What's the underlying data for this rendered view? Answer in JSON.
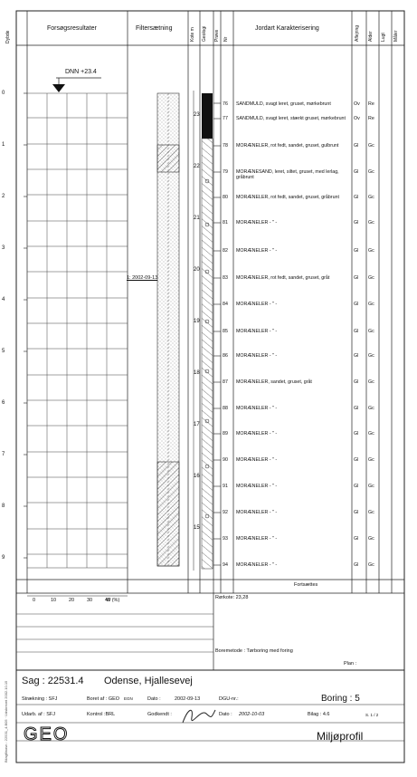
{
  "header": {
    "dybde": "Dybde",
    "forsoeg": "Forsøgsresultater",
    "filter": "Filtersætning",
    "kote": "Kote m",
    "geologi": "Geologi",
    "proeve": "Prøve",
    "nr": "Nr",
    "jordart": "Jordart  Karakterisering",
    "aflejring": "Aflejring",
    "alder": "Alder",
    "lugt": "Lugt",
    "maaler": "Måler"
  },
  "dnn": "DNN +23.4",
  "filter_date_label": "1: 2002-09-13",
  "depth_ticks": [
    "0",
    "1",
    "2",
    "3",
    "4",
    "5",
    "6",
    "7",
    "8",
    "9"
  ],
  "elev_ticks": [
    "23",
    "22",
    "21",
    "20",
    "19",
    "18",
    "17",
    "16",
    "15"
  ],
  "samples": [
    {
      "nr": "76",
      "text": "SANDMULD, svagt leret, gruset, mørkebrunt",
      "a": "Ov",
      "b": "Re"
    },
    {
      "nr": "77",
      "text": "SANDMULD, svagt leret, stærkt gruset, mørkebrunt",
      "a": "Ov",
      "b": "Re"
    },
    {
      "nr": "78",
      "text": "MORÆNELER, rot fedt, sandet, gruset, gulbrunt",
      "a": "Gl",
      "b": "Gc"
    },
    {
      "nr": "79",
      "text": "MORÆNESAND, leret, siltet, gruset, med lerlag, gråbrunt",
      "a": "Gl",
      "b": "Gc"
    },
    {
      "nr": "80",
      "text": "MORÆNELER, rot fedt, sandet, gruset, gråbrunt",
      "a": "Gl",
      "b": "Gc"
    },
    {
      "nr": "81",
      "text": "MORÆNELER  - \" -",
      "a": "Gl",
      "b": "Gc"
    },
    {
      "nr": "82",
      "text": "MORÆNELER  - \" -",
      "a": "Gl",
      "b": "Gc"
    },
    {
      "nr": "83",
      "text": "MORÆNELER, rot fedt, sandet, gruset, gråt",
      "a": "Gl",
      "b": "Gc"
    },
    {
      "nr": "84",
      "text": "MORÆNELER  - \" -",
      "a": "Gl",
      "b": "Gc"
    },
    {
      "nr": "85",
      "text": "MORÆNELER  - \" -",
      "a": "Gl",
      "b": "Gc"
    },
    {
      "nr": "86",
      "text": "MORÆNELER  - \" -",
      "a": "Gl",
      "b": "Gc"
    },
    {
      "nr": "87",
      "text": "MORÆNELER, sandet, gruset, gråt",
      "a": "Gl",
      "b": "Gc"
    },
    {
      "nr": "88",
      "text": "MORÆNELER  - \" -",
      "a": "Gl",
      "b": "Gc"
    },
    {
      "nr": "89",
      "text": "MORÆNELER  - \" -",
      "a": "Gl",
      "b": "Gc"
    },
    {
      "nr": "90",
      "text": "MORÆNELER  - \" -",
      "a": "Gl",
      "b": "Gc"
    },
    {
      "nr": "91",
      "text": "MORÆNELER  - \" -",
      "a": "Gl",
      "b": "Gc"
    },
    {
      "nr": "92",
      "text": "MORÆNELER  - \" -",
      "a": "Gl",
      "b": "Gc"
    },
    {
      "nr": "93",
      "text": "MORÆNELER  - \" -",
      "a": "Gl",
      "b": "Gc"
    },
    {
      "nr": "94",
      "text": "MORÆNELER  - \" -",
      "a": "Gl",
      "b": "Gc"
    }
  ],
  "fortsaettes": "Fortsættes",
  "w_axis": {
    "ticks": [
      "0",
      "10",
      "20",
      "30",
      "40"
    ],
    "label": "W (%)"
  },
  "roerkote": "Rørkote: 23,28",
  "boremetode": "Boremetode : Tørboring med foring",
  "plan": "Plan :",
  "side_text": "Bilagfilnavn : 22531_4.B05 · Udskrevet 2002.10.15",
  "footer": {
    "sag": "Sag : 22531.4",
    "lokalitet": "Odense, Hjallesevej",
    "straekning": "Strækning : SFJ",
    "boret_af": "Boret af : GEO",
    "egn": "EGN",
    "dato_lbl": "Dato :",
    "dato_val": "2002-09-13",
    "dgu": "DGU-nr.:",
    "boring": "Boring : 5",
    "udarb": "Udarb. af : SFJ",
    "kontrol": "Kontrol :BRL",
    "godkendt": "Godkendt :",
    "dato2_lbl": "Dato :",
    "dato2_val": "2002-10-03",
    "bilag": "Bilag : 4.6",
    "side": "S. 1 / 2",
    "logo": "GEO",
    "title": "Miljøprofil"
  }
}
